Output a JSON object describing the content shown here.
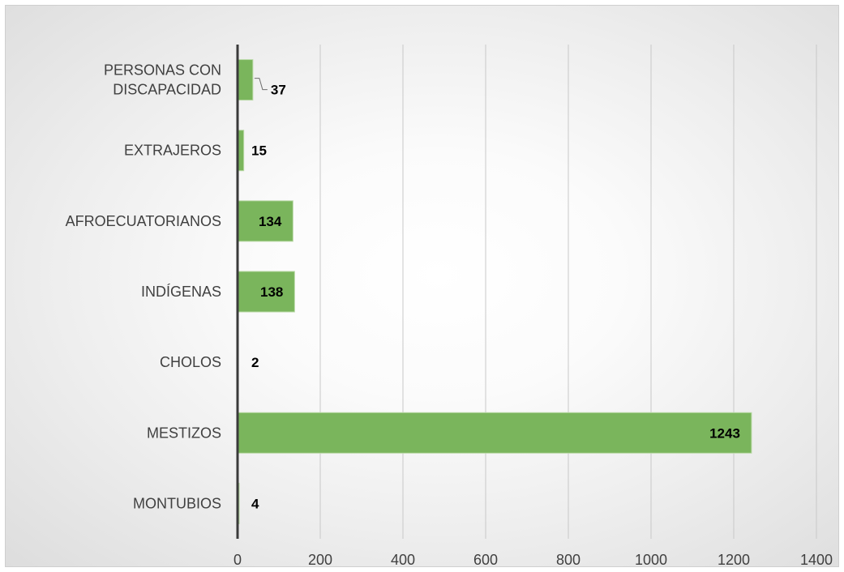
{
  "chart_data": {
    "type": "bar",
    "orientation": "horizontal",
    "categories": [
      "PERSONAS CON\nDISCAPACIDAD",
      "EXTRAJEROS",
      "AFROECUATORIANOS",
      "INDÍGENAS",
      "CHOLOS",
      "MESTIZOS",
      "MONTUBIOS"
    ],
    "values": [
      37,
      15,
      134,
      138,
      2,
      1243,
      4
    ],
    "xlim": [
      0,
      1400
    ],
    "xticks": [
      0,
      200,
      400,
      600,
      800,
      1000,
      1200,
      1400
    ],
    "grid": "vertical",
    "legend": "none",
    "bar_color": "#7ab55c"
  }
}
